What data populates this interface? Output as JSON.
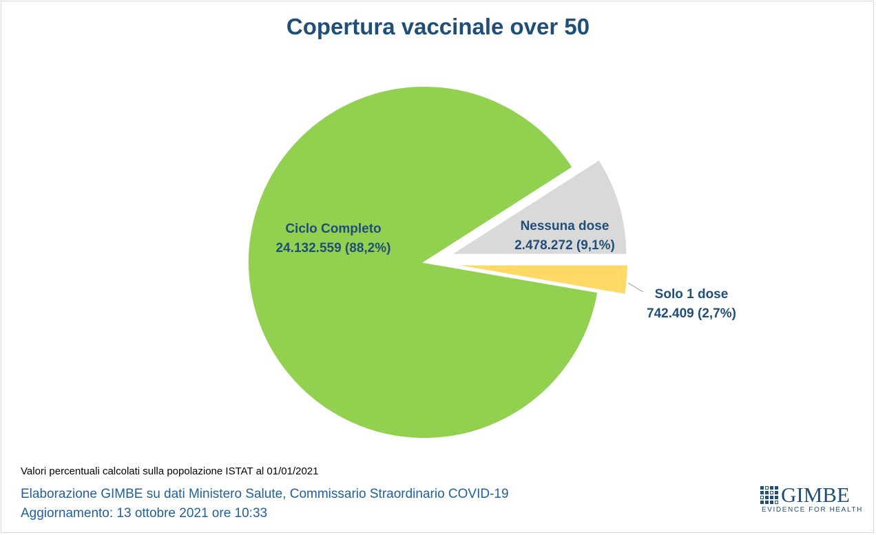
{
  "chart_data": {
    "type": "pie",
    "title": "Copertura vaccinale over 50",
    "slices": [
      {
        "name": "Ciclo Completo",
        "value": 24132559,
        "value_label": "24.132.559",
        "percent_label": "(88,2%)",
        "percent": 88.2,
        "color": "#92d050"
      },
      {
        "name": "Nessuna dose",
        "value": 2478272,
        "value_label": "2.478.272",
        "percent_label": "(9,1%)",
        "percent": 9.1,
        "color": "#d9d9d9"
      },
      {
        "name": "Solo 1 dose",
        "value": 742409,
        "value_label": "742.409",
        "percent_label": "(2,7%)",
        "percent": 2.7,
        "color": "#ffd966"
      }
    ]
  },
  "footer": {
    "note": "Valori percentuali calcolati sulla popolazione ISTAT al 01/01/2021",
    "source": "Elaborazione GIMBE su dati Ministero Salute, Commissario Straordinario COVID-19",
    "updated": "Aggiornamento: 13 ottobre 2021 ore 10:33"
  },
  "logo": {
    "name": "GIMBE",
    "tagline": "EVIDENCE FOR HEALTH"
  }
}
